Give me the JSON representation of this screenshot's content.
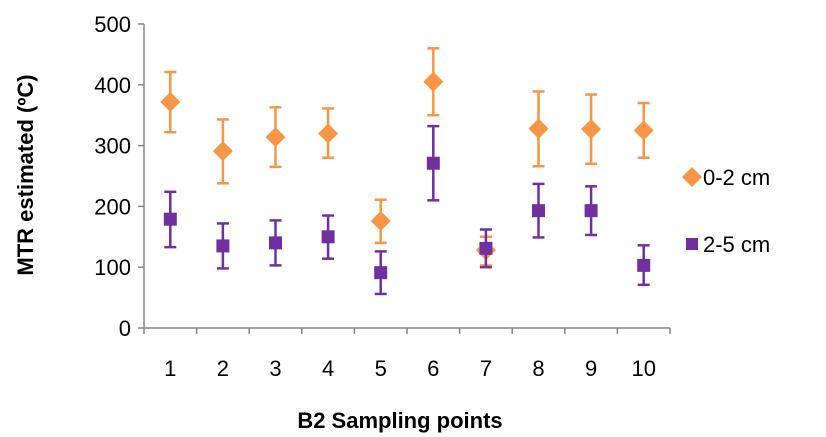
{
  "chart_data": {
    "type": "scatter",
    "title": "",
    "xlabel": "B2 Sampling points",
    "ylabel": "MTR estimated (ºC)",
    "categories": [
      "1",
      "2",
      "3",
      "4",
      "5",
      "6",
      "7",
      "8",
      "9",
      "10"
    ],
    "ylim": [
      0,
      500
    ],
    "yticks": [
      "0",
      "100",
      "200",
      "300",
      "400",
      "500"
    ],
    "grid": false,
    "legend_position": "right",
    "error_bars": true,
    "series": [
      {
        "name": "0-2 cm",
        "marker": "diamond",
        "color": "#F79646",
        "values": [
          372,
          291,
          314,
          320,
          176,
          405,
          128,
          328,
          327,
          325
        ],
        "lower": [
          322,
          238,
          265,
          280,
          140,
          350,
          103,
          266,
          270,
          280
        ],
        "upper": [
          421,
          343,
          363,
          361,
          211,
          460,
          150,
          389,
          384,
          370
        ]
      },
      {
        "name": "2-5 cm",
        "marker": "square",
        "color": "#7030A0",
        "values": [
          179,
          135,
          140,
          150,
          91,
          271,
          131,
          193,
          193,
          103
        ],
        "lower": [
          133,
          98,
          103,
          114,
          56,
          210,
          100,
          149,
          153,
          71
        ],
        "upper": [
          224,
          172,
          177,
          185,
          126,
          332,
          162,
          237,
          233,
          136
        ]
      }
    ]
  }
}
